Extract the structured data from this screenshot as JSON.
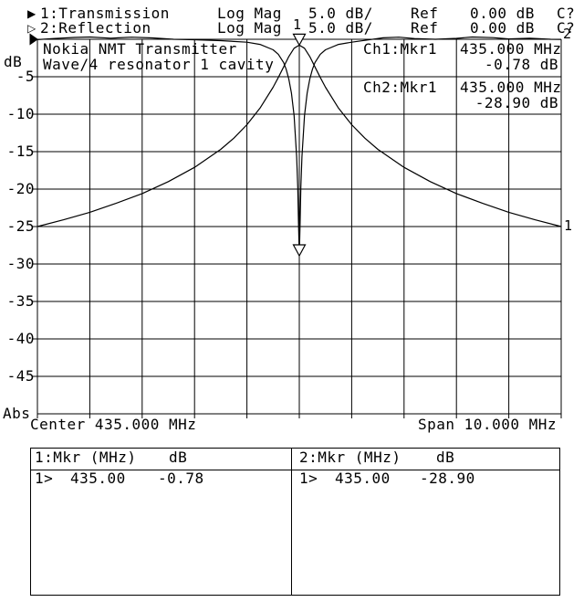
{
  "header": {
    "rows": [
      {
        "glyph": "▶",
        "label": "1:Transmission",
        "mode": "Log Mag",
        "scale": "5.0 dB/",
        "ref_label": "Ref",
        "ref_value": "0.00 dB",
        "cal": "C?"
      },
      {
        "glyph": "▷",
        "label": "2:Reflection",
        "mode": "Log Mag",
        "scale": "5.0 dB/",
        "ref_label": "Ref",
        "ref_value": "0.00 dB",
        "cal": "C?"
      }
    ]
  },
  "y_axis": {
    "unit": "dB",
    "abs_label": "Abs",
    "ticks": [
      "-5",
      "-10",
      "-15",
      "-20",
      "-25",
      "-30",
      "-35",
      "-40",
      "-45"
    ]
  },
  "annotations": {
    "title1": "Nokia NMT Transmitter",
    "title2": "Wave/4 resonator 1 cavity",
    "ch1": {
      "label": "Ch1:Mkr1",
      "freq": "435.000 MHz",
      "value": "-0.78 dB"
    },
    "ch2": {
      "label": "Ch2:Mkr1",
      "freq": "435.000 MHz",
      "value": "-28.90 dB"
    },
    "marker1_label": "1",
    "trace1_label": "1",
    "trace2_label": "2"
  },
  "x_axis": {
    "center": "Center 435.000 MHz",
    "span": "Span 10.000 MHz"
  },
  "marker_table": {
    "col1": {
      "header_name": "1:Mkr (MHz)",
      "header_unit": "dB",
      "row_num": "1>",
      "row_freq": "435.00",
      "row_value": "-0.78"
    },
    "col2": {
      "header_name": "2:Mkr (MHz)",
      "header_unit": "dB",
      "row_num": "1>",
      "row_freq": "435.00",
      "row_value": "-28.90"
    }
  },
  "chart_data": {
    "type": "line",
    "title": "Nokia NMT Transmitter Wave/4 resonator 1 cavity",
    "ylabel": "dB",
    "y_ref_db": 0.0,
    "db_per_div": 5.0,
    "ylim": [
      -50,
      0
    ],
    "center_mhz": 435.0,
    "span_mhz": 10.0,
    "xlim": [
      430,
      440
    ],
    "grid": true,
    "series": [
      {
        "name": "1: Transmission (Log Mag, 5.0 dB/, Ref 0.00 dB)",
        "points": [
          [
            430.0,
            -25.0
          ],
          [
            430.5,
            -24.1
          ],
          [
            431.0,
            -23.1
          ],
          [
            431.5,
            -21.9
          ],
          [
            432.0,
            -20.6
          ],
          [
            432.5,
            -19.0
          ],
          [
            433.0,
            -17.1
          ],
          [
            433.5,
            -14.7
          ],
          [
            433.75,
            -13.2
          ],
          [
            434.0,
            -11.4
          ],
          [
            434.25,
            -9.2
          ],
          [
            434.5,
            -6.4
          ],
          [
            434.6,
            -5.1
          ],
          [
            434.7,
            -3.7
          ],
          [
            434.8,
            -2.3
          ],
          [
            434.9,
            -1.2
          ],
          [
            435.0,
            -0.78
          ],
          [
            435.1,
            -1.2
          ],
          [
            435.2,
            -2.3
          ],
          [
            435.3,
            -3.7
          ],
          [
            435.4,
            -5.1
          ],
          [
            435.5,
            -6.4
          ],
          [
            435.75,
            -9.2
          ],
          [
            436.0,
            -11.4
          ],
          [
            436.25,
            -13.2
          ],
          [
            436.5,
            -14.7
          ],
          [
            437.0,
            -17.1
          ],
          [
            437.5,
            -19.0
          ],
          [
            438.0,
            -20.6
          ],
          [
            438.5,
            -21.9
          ],
          [
            439.0,
            -23.1
          ],
          [
            439.5,
            -24.1
          ],
          [
            440.0,
            -25.0
          ]
        ]
      },
      {
        "name": "2: Reflection (Log Mag, 5.0 dB/, Ref 0.00 dB)",
        "points": [
          [
            430.0,
            -0.05
          ],
          [
            430.3,
            0.1
          ],
          [
            430.7,
            0.25
          ],
          [
            431.0,
            0.3
          ],
          [
            431.4,
            0.15
          ],
          [
            431.8,
            0.28
          ],
          [
            432.2,
            0.18
          ],
          [
            432.6,
            0.0
          ],
          [
            433.0,
            -0.06
          ],
          [
            433.5,
            -0.18
          ],
          [
            434.0,
            -0.39
          ],
          [
            434.25,
            -0.68
          ],
          [
            434.5,
            -1.4
          ],
          [
            434.6,
            -2.0
          ],
          [
            434.7,
            -3.1
          ],
          [
            434.75,
            -4.0
          ],
          [
            434.8,
            -5.3
          ],
          [
            434.85,
            -7.2
          ],
          [
            434.9,
            -10.2
          ],
          [
            434.95,
            -15.7
          ],
          [
            434.97,
            -19.7
          ],
          [
            434.985,
            -24.4
          ],
          [
            435.0,
            -28.9
          ],
          [
            435.015,
            -24.4
          ],
          [
            435.03,
            -19.7
          ],
          [
            435.05,
            -15.7
          ],
          [
            435.1,
            -10.2
          ],
          [
            435.15,
            -7.2
          ],
          [
            435.2,
            -5.3
          ],
          [
            435.25,
            -4.0
          ],
          [
            435.3,
            -3.1
          ],
          [
            435.4,
            -2.0
          ],
          [
            435.5,
            -1.4
          ],
          [
            435.75,
            -0.68
          ],
          [
            436.0,
            -0.39
          ],
          [
            436.3,
            -0.1
          ],
          [
            436.6,
            0.2
          ],
          [
            436.9,
            0.28
          ],
          [
            437.2,
            0.1
          ],
          [
            437.6,
            0.0
          ],
          [
            438.0,
            0.12
          ],
          [
            438.3,
            0.3
          ],
          [
            438.7,
            0.22
          ],
          [
            439.0,
            0.05
          ],
          [
            439.4,
            0.15
          ],
          [
            439.8,
            0.0
          ],
          [
            440.0,
            -0.02
          ]
        ]
      }
    ],
    "markers": [
      {
        "marker": "1",
        "trace": 1,
        "freq_mhz": 435.0,
        "value_db": -0.78,
        "labeled": true
      },
      {
        "marker": "1",
        "trace": 2,
        "freq_mhz": 435.0,
        "value_db": -28.9,
        "labeled": false
      }
    ]
  }
}
